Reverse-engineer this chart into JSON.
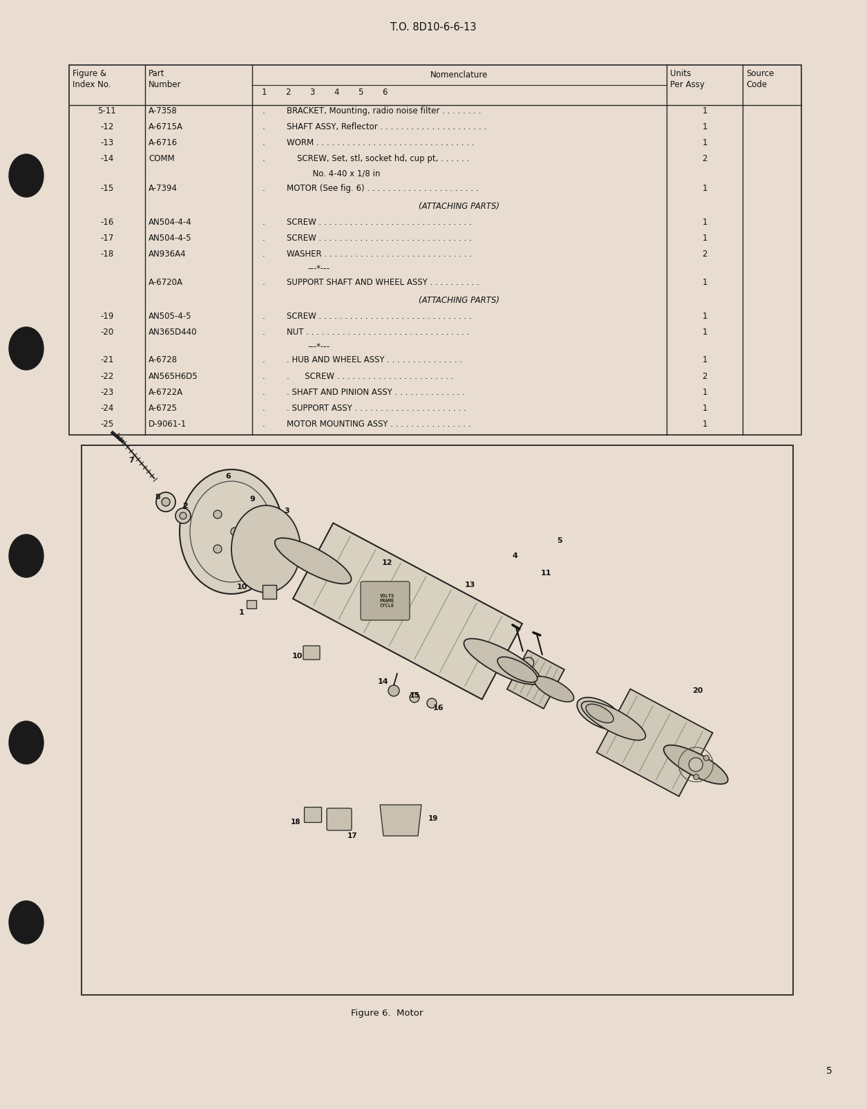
{
  "page_bg": "#e8ddd0",
  "header_text": "T.O. 8D10-6-6-13",
  "page_number": "5",
  "table_rows": [
    {
      "fig": "5-11",
      "part": "A-7358",
      "col1": ".",
      "col2": "",
      "col3": "",
      "desc": "BRACKET, Mounting, radio noise filter . . . . . . . .",
      "units": "1"
    },
    {
      "fig": "-12",
      "part": "A-6715A",
      "col1": ".",
      "col2": "",
      "col3": "",
      "desc": "SHAFT ASSY, Reflector . . . . . . . . . . . . . . . . . . . . .",
      "units": "1"
    },
    {
      "fig": "-13",
      "part": "A-6716",
      "col1": ".",
      "col2": "",
      "col3": "",
      "desc": "WORM . . . . . . . . . . . . . . . . . . . . . . . . . . . . . . .",
      "units": "1"
    },
    {
      "fig": "-14",
      "part": "COMM",
      "col1": ".",
      "col2": "",
      "col3": "",
      "desc": "    SCREW, Set, stl, socket hd, cup pt, . . . . . .",
      "units": "2"
    },
    {
      "fig": "",
      "part": "",
      "col1": "",
      "col2": "",
      "col3": "",
      "desc": "          No. 4-40 x 1/8 in",
      "units": ""
    },
    {
      "fig": "-15",
      "part": "A-7394",
      "col1": ".",
      "col2": "",
      "col3": "",
      "desc": "MOTOR (See fig. 6) . . . . . . . . . . . . . . . . . . . . . .",
      "units": "1"
    },
    {
      "fig": "",
      "part": "",
      "col1": "",
      "col2": "",
      "col3": "",
      "desc": "(ATTACHING PARTS)",
      "units": "",
      "center": true
    },
    {
      "fig": "-16",
      "part": "AN504-4-4",
      "col1": ".",
      "col2": "",
      "col3": "",
      "desc": "SCREW . . . . . . . . . . . . . . . . . . . . . . . . . . . . . .",
      "units": "1"
    },
    {
      "fig": "-17",
      "part": "AN504-4-5",
      "col1": ".",
      "col2": "",
      "col3": "",
      "desc": "SCREW . . . . . . . . . . . . . . . . . . . . . . . . . . . . . .",
      "units": "1"
    },
    {
      "fig": "-18",
      "part": "AN936A4",
      "col1": ".",
      "col2": "",
      "col3": "",
      "desc": "WASHER . . . . . . . . . . . . . . . . . . . . . . . . . . . . .",
      "units": "2"
    },
    {
      "fig": "",
      "part": "",
      "col1": "",
      "col2": "",
      "col3": "",
      "desc": "---*---",
      "units": ""
    },
    {
      "fig": "",
      "part": "A-6720A",
      "col1": ".",
      "col2": "",
      "col3": "",
      "desc": "SUPPORT SHAFT AND WHEEL ASSY . . . . . . . . . .",
      "units": "1"
    },
    {
      "fig": "",
      "part": "",
      "col1": "",
      "col2": "",
      "col3": "",
      "desc": "(ATTACHING PARTS)",
      "units": "",
      "center": true
    },
    {
      "fig": "-19",
      "part": "AN505-4-5",
      "col1": ".",
      "col2": "",
      "col3": "",
      "desc": "SCREW . . . . . . . . . . . . . . . . . . . . . . . . . . . . . .",
      "units": "1"
    },
    {
      "fig": "-20",
      "part": "AN365D440",
      "col1": ".",
      "col2": "",
      "col3": "",
      "desc": "NUT . . . . . . . . . . . . . . . . . . . . . . . . . . . . . . . .",
      "units": "1"
    },
    {
      "fig": "",
      "part": "",
      "col1": "",
      "col2": "",
      "col3": "",
      "desc": "---*---",
      "units": ""
    },
    {
      "fig": "-21",
      "part": "A-6728",
      "col1": ".",
      "col2": ".",
      "col3": "",
      "desc": "  HUB AND WHEEL ASSY . . . . . . . . . . . . . . .",
      "units": "1"
    },
    {
      "fig": "-22",
      "part": "AN565H6D5",
      "col1": ".",
      "col2": ".",
      "col3": ".",
      "desc": "       SCREW . . . . . . . . . . . . . . . . . . . . . . .",
      "units": "2"
    },
    {
      "fig": "-23",
      "part": "A-6722A",
      "col1": ".",
      "col2": ".",
      "col3": "",
      "desc": "  SHAFT AND PINION ASSY . . . . . . . . . . . . . .",
      "units": "1"
    },
    {
      "fig": "-24",
      "part": "A-6725",
      "col1": ".",
      "col2": ".",
      "col3": "",
      "desc": "  SUPPORT ASSY . . . . . . . . . . . . . . . . . . . . . .",
      "units": "1"
    },
    {
      "fig": "-25",
      "part": "D-9061-1",
      "col1": ".",
      "col2": "",
      "col3": "",
      "desc": "MOTOR MOUNTING ASSY . . . . . . . . . . . . . . . .",
      "units": "1"
    }
  ],
  "figure_caption": "Figure 6.  Motor",
  "text_color": "#111111",
  "line_color": "#222222",
  "diagram_bg": "#e8ddd0"
}
